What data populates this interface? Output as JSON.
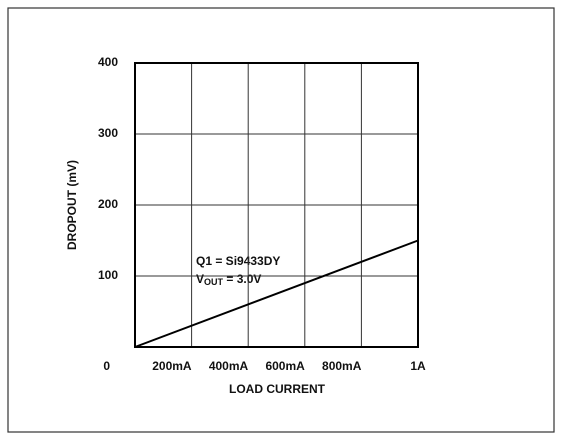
{
  "chart_data": {
    "type": "line",
    "ylabel": "DROPOUT (mV)",
    "xlabel": "LOAD CURRENT",
    "annotation": {
      "line1": "Q1 = Si9433DY",
      "line2_main": "V",
      "line2_sub": "OUT",
      "line2_rest": " = 3.0V"
    },
    "x": [
      0,
      1
    ],
    "series": [
      {
        "color": "#000000",
        "values": [
          0,
          150
        ]
      }
    ],
    "xlim": [
      0,
      1
    ],
    "xticks": [
      0,
      {
        "value": 0.2,
        "label": "200mA"
      },
      {
        "value": 0.4,
        "label": "400mA"
      },
      {
        "value": 0.6,
        "label": "600mA"
      },
      {
        "value": 0.8,
        "label": "800mA"
      },
      {
        "value": 1,
        "label": "1A"
      }
    ],
    "ylim": [
      0,
      400
    ],
    "yticks": [
      100,
      200,
      300,
      400
    ],
    "grid": true
  }
}
